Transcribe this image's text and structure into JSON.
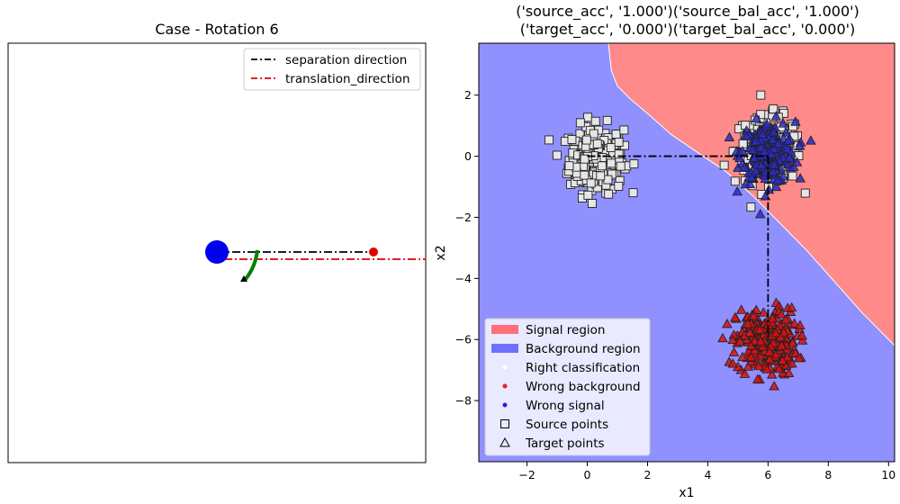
{
  "chart_data": [
    {
      "type": "diagram",
      "title": "Case - Rotation 6",
      "legend": {
        "placement": "top-right",
        "entries": [
          {
            "label": "separation direction",
            "color": "#000000",
            "style": "dash-dot"
          },
          {
            "label": "translation_direction",
            "color": "#e00000",
            "style": "dash-dot"
          }
        ]
      },
      "colors": {
        "source_marker": "#0000ee",
        "target_marker": "#e00000",
        "rotation_arc": "#008000"
      }
    },
    {
      "type": "scatter",
      "title_lines": [
        "('source_acc', '1.000')('source_bal_acc', '1.000')",
        "('target_acc', '0.000')('target_bal_acc', '0.000')"
      ],
      "xlabel": "x1",
      "ylabel": "x2",
      "xlim": [
        -3.6,
        10.2
      ],
      "ylim": [
        -10.0,
        3.7
      ],
      "xticks": [
        -2,
        0,
        2,
        4,
        6,
        8,
        10
      ],
      "yticks": [
        2,
        0,
        -2,
        -4,
        -6,
        -8
      ],
      "grid": false,
      "regions": {
        "signal_color": "#ff8a8a",
        "background_color": "#9090ff",
        "boundary_x": [
          0.7,
          0.8,
          1.0,
          1.4,
          2.0,
          2.8,
          3.7,
          4.6,
          5.5,
          6.4,
          7.3,
          8.2,
          9.1,
          10.2
        ],
        "boundary_y": [
          3.7,
          2.8,
          2.3,
          1.9,
          1.4,
          0.7,
          0.1,
          -0.5,
          -1.3,
          -2.2,
          -3.1,
          -4.1,
          -5.1,
          -6.2
        ]
      },
      "clusters": [
        {
          "name": "Source background",
          "marker": "square",
          "fill": "#e6e6e6",
          "center": [
            0.3,
            -0.1
          ],
          "std": [
            0.45,
            0.55
          ],
          "count": 260
        },
        {
          "name": "Source signal",
          "marker": "square",
          "fill": "#e6e6e6",
          "center": [
            6.0,
            0.2
          ],
          "std": [
            0.55,
            0.55
          ],
          "count": 180
        },
        {
          "name": "Target signal",
          "marker": "triangle",
          "fill": "#2a2ad0",
          "center": [
            6.0,
            0.1
          ],
          "std": [
            0.45,
            0.5
          ],
          "count": 240
        },
        {
          "name": "Target background",
          "marker": "triangle",
          "fill": "#dd1111",
          "center": [
            5.95,
            -6.1
          ],
          "std": [
            0.5,
            0.55
          ],
          "count": 260
        }
      ],
      "guide_lines": [
        {
          "points": [
            [
              0.0,
              0.0
            ],
            [
              6.0,
              0.0
            ]
          ],
          "color": "#000000",
          "style": "dash-dot"
        },
        {
          "points": [
            [
              6.0,
              0.0
            ],
            [
              6.0,
              -6.0
            ]
          ],
          "color": "#000000",
          "style": "dash-dot"
        }
      ],
      "legend": {
        "placement": "lower-left",
        "entries": [
          {
            "label": "Signal region",
            "kind": "patch",
            "color": "#ff707a"
          },
          {
            "label": "Background region",
            "kind": "patch",
            "color": "#7070ff"
          },
          {
            "label": "Right classification",
            "kind": "dot",
            "color": "#ffffff"
          },
          {
            "label": "Wrong background",
            "kind": "dot",
            "color": "#e82020"
          },
          {
            "label": "Wrong signal",
            "kind": "dot",
            "color": "#2020e0"
          },
          {
            "label": "Source points",
            "kind": "square"
          },
          {
            "label": "Target points",
            "kind": "triangle"
          }
        ]
      }
    }
  ]
}
